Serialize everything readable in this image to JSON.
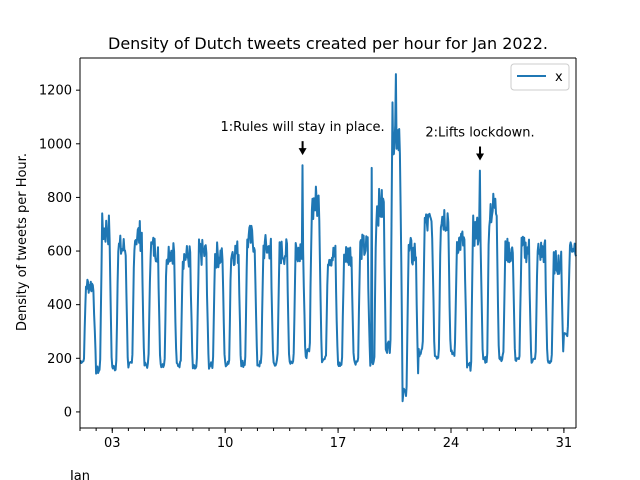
{
  "chart_data": {
    "type": "line",
    "title": "Density of Dutch tweets created per hour for Jan 2022.",
    "xlabel": "",
    "ylabel": "Density of tweets per Hour.",
    "x_unit_label": "Jan",
    "xlim_days": [
      1,
      31.75
    ],
    "ylim": [
      -60,
      1320
    ],
    "yticks": [
      0,
      200,
      400,
      600,
      800,
      1000,
      1200
    ],
    "xticks": [
      {
        "day": 3,
        "label": "03"
      },
      {
        "day": 10,
        "label": "10"
      },
      {
        "day": 17,
        "label": "17"
      },
      {
        "day": 24,
        "label": "24"
      },
      {
        "day": 31,
        "label": "31"
      }
    ],
    "legend": {
      "placement": "top-right",
      "entries": [
        {
          "name": "x",
          "color": "#1f77b4"
        }
      ]
    },
    "grid": false,
    "series": [
      {
        "name": "x",
        "color": "#1f77b4",
        "daily_min": [
          170,
          120,
          135,
          140,
          145,
          150,
          150,
          135,
          145,
          150,
          150,
          150,
          155,
          160,
          180,
          170,
          150,
          160,
          145,
          190,
          40,
          190,
          175,
          190,
          135,
          160,
          175,
          165,
          165,
          165,
          270
        ],
        "daily_max": [
          545,
          810,
          720,
          780,
          720,
          710,
          680,
          700,
          690,
          700,
          760,
          720,
          700,
          720,
          920,
          680,
          690,
          720,
          910,
          1260,
          720,
          820,
          860,
          740,
          800,
          900,
          700,
          710,
          700,
          650,
          700
        ],
        "spikes": [
          {
            "day": 14.8,
            "value": 920
          },
          {
            "day": 19.1,
            "value": 910
          },
          {
            "day": 20.6,
            "value": 1260
          },
          {
            "day": 21.0,
            "value": 40
          },
          {
            "day": 25.8,
            "value": 900
          }
        ]
      }
    ],
    "annotations": [
      {
        "text": "1:Rules will stay in place.",
        "day": 14.8,
        "value": 980
      },
      {
        "text": "2:Lifts lockdown.",
        "day": 25.8,
        "value": 960
      }
    ]
  }
}
